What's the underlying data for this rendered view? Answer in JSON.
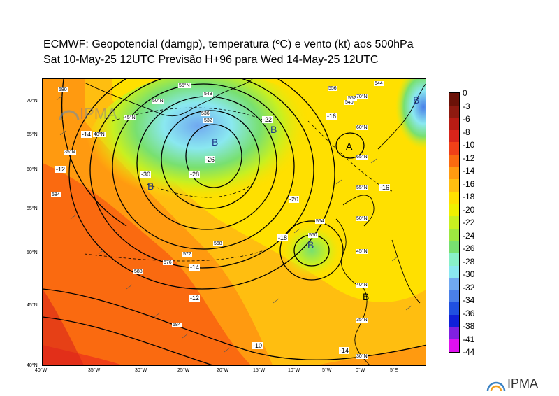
{
  "title_line1": "ECMWF:  Geopotencial (damgp), temperatura (ºC) e vento (kt) aos 500hPa",
  "title_line2": "Sat 10-May-25 12UTC Previsão H+96 para Wed 14-May-25 12UTC",
  "lat_labels": [
    "70°N",
    "65°N",
    "60°N",
    "55°N",
    "50°N",
    "45°N",
    "40°N"
  ],
  "lon_labels": [
    "40°W",
    "35°W",
    "30°W",
    "25°W",
    "20°W",
    "15°W",
    "10°W",
    "5°W",
    "0°W",
    "5°E"
  ],
  "colorbar": {
    "labels": [
      "0",
      "-3",
      "-6",
      "-8",
      "-10",
      "-12",
      "-14",
      "-16",
      "-18",
      "-20",
      "-22",
      "-24",
      "-26",
      "-28",
      "-30",
      "-32",
      "-34",
      "-36",
      "-38",
      "-41",
      "-44"
    ],
    "colors": [
      "#6b1208",
      "#8e1a10",
      "#b81c14",
      "#d8241a",
      "#f04018",
      "#fa6a10",
      "#ff9a10",
      "#ffbe10",
      "#ffe000",
      "#f0f000",
      "#c8f020",
      "#9ee840",
      "#78e070",
      "#88f0c8",
      "#8ae8f0",
      "#70a8f0",
      "#4a80e8",
      "#2050e0",
      "#1020d8",
      "#8020e0",
      "#e010f0"
    ]
  },
  "pressure_centers": [
    {
      "label": "B"
    },
    {
      "label": "B"
    },
    {
      "label": "B"
    },
    {
      "label": "B"
    },
    {
      "label": "A"
    },
    {
      "label": "B"
    },
    {
      "label": "B"
    }
  ],
  "contour_labels": [
    "580",
    "584",
    "572",
    "576",
    "568",
    "548",
    "544",
    "536",
    "532",
    "540",
    "564",
    "560",
    "556",
    "552",
    "588",
    "584"
  ],
  "temp_labels": [
    "-14",
    "-12",
    "-30",
    "-28",
    "-26",
    "-22",
    "-16",
    "-20",
    "-18",
    "-14",
    "-12",
    "-10",
    "-14",
    "-16"
  ],
  "grid_labels_in_map": [
    "45°N",
    "40°N",
    "35°N",
    "50°N",
    "55°N",
    "60°N",
    "65°N",
    "70°N",
    "55°N",
    "50°N",
    "45°N",
    "40°N",
    "35°N",
    "30°N"
  ],
  "watermark": "IPMA",
  "logo": "IPMA"
}
